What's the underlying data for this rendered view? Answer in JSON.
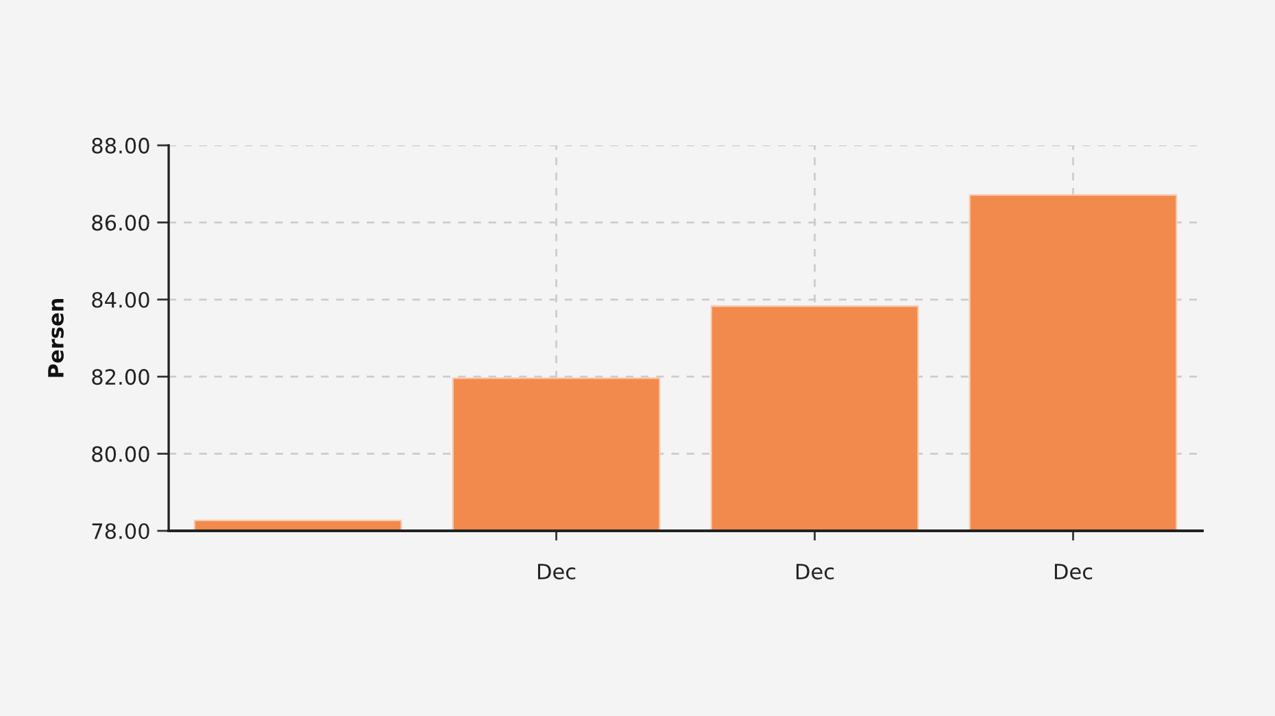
{
  "chart_data": {
    "type": "bar",
    "ylabel": "Persen",
    "categories": [
      null,
      "Dec",
      "Dec",
      "Dec"
    ],
    "values": [
      78.27,
      81.96,
      83.83,
      86.71
    ],
    "color": "#f28a4d",
    "ylim": [
      78,
      88
    ],
    "yticks": [
      {
        "value": 78,
        "label": "78.00"
      },
      {
        "value": 80,
        "label": "80.00"
      },
      {
        "value": 82,
        "label": "82.00"
      },
      {
        "value": 84,
        "label": "84.00"
      },
      {
        "value": 86,
        "label": "86.00"
      },
      {
        "value": 88,
        "label": "88.00"
      }
    ],
    "grid": true
  }
}
